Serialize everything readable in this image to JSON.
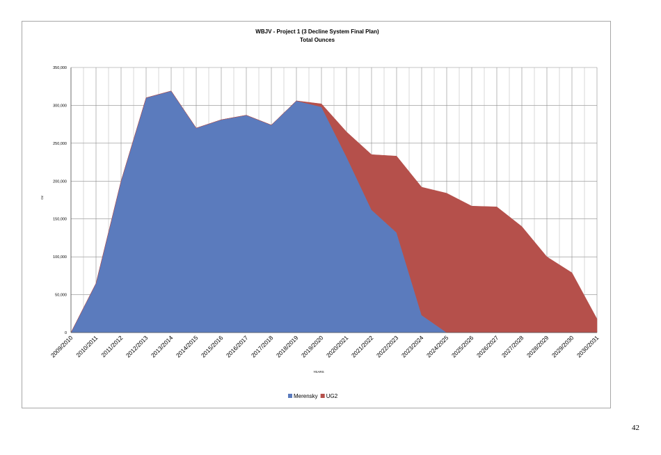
{
  "page_number": "42",
  "chart_data": {
    "type": "area",
    "stacked": true,
    "title": "WBJV - Project 1  (3 Decline System Final Plan)",
    "subtitle": "Total Ounces",
    "xlabel": "YEARS",
    "ylabel": "Oz",
    "ylim": [
      0,
      350000
    ],
    "yticks": [
      0,
      50000,
      100000,
      150000,
      200000,
      250000,
      300000,
      350000
    ],
    "ytick_labels": [
      "0",
      "50,000",
      "100,000",
      "150,000",
      "200,000",
      "250,000",
      "300,000",
      "350,000"
    ],
    "grid": true,
    "legend_position": "bottom",
    "categories": [
      "2009/2010",
      "2010/2011",
      "2011/2012",
      "2012/2013",
      "2013/2014",
      "2014/2015",
      "2015/2016",
      "2016/2017",
      "2017/2018",
      "2018/2019",
      "2019/2020",
      "2020/2021",
      "2021/2022",
      "2022/2023",
      "2023/2024",
      "2024/2025",
      "2025/2026",
      "2026/2027",
      "2027/2028",
      "2028/2029",
      "2029/2030",
      "2030/2031"
    ],
    "series": [
      {
        "name": "Merensky",
        "color": "#5b7bbd",
        "values": [
          0,
          65000,
          200000,
          310000,
          319000,
          270000,
          281000,
          287000,
          274000,
          306000,
          298000,
          232000,
          162000,
          132000,
          23000,
          0,
          0,
          0,
          0,
          0,
          0,
          0
        ]
      },
      {
        "name": "UG2",
        "color": "#b5504b",
        "values": [
          0,
          0,
          0,
          0,
          0,
          0,
          0,
          0,
          0,
          0,
          4000,
          33000,
          73000,
          101000,
          169000,
          184000,
          167000,
          166000,
          140000,
          100000,
          79000,
          18000
        ]
      }
    ]
  }
}
